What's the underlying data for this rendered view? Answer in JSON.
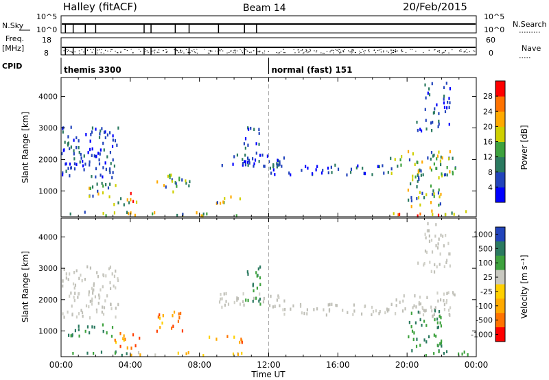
{
  "header": {
    "station": "Halley (fitACF)",
    "beam": "Beam 14",
    "date": "20/Feb/2015"
  },
  "status_strip": {
    "nsky_label": "N.Sky",
    "nsky_tick_top": "10^5",
    "nsky_tick_bottom": "10^0",
    "nsearch_label": "N.Search",
    "nsearch_tick_top": "10^5",
    "nsearch_tick_bottom": "10^0",
    "freq_label": "Freq.",
    "freq_unit": "[MHz]",
    "freq_ticks": [
      "18",
      "8"
    ],
    "nave_label": "Nave",
    "nave_ticks": [
      "60",
      "0"
    ],
    "cpid_label": "CPID",
    "cpid_segments": [
      {
        "start_hour": 0,
        "label": "themis 3300"
      },
      {
        "start_hour": 12,
        "label": "normal (fast) 151"
      }
    ]
  },
  "chart_data": [
    {
      "type": "heatmap",
      "name": "power",
      "ylabel": "Slant Range [km]",
      "yticks": [
        "4000",
        "3000",
        "2000",
        "1000"
      ],
      "ylim": [
        180,
        4600
      ],
      "xlim": [
        0,
        24
      ],
      "colorbar": {
        "label": "Power [dB]",
        "ticks": [
          "28",
          "24",
          "20",
          "16",
          "12",
          "8",
          "4"
        ],
        "range": [
          0,
          32
        ],
        "colors": [
          "#0000ff",
          "#2244bb",
          "#2b7a60",
          "#3ea23e",
          "#cfd000",
          "#ffaa00",
          "#ff7300",
          "#ff0000"
        ]
      },
      "clusters": [
        {
          "t0": 0.0,
          "t1": 3.3,
          "r0": 1450,
          "r1": 3100,
          "level": "low"
        },
        {
          "t0": 0.3,
          "t1": 1.3,
          "r0": 1750,
          "r1": 2250,
          "level": "low"
        },
        {
          "t0": 1.2,
          "t1": 3.2,
          "r0": 800,
          "r1": 1300,
          "level": "mid"
        },
        {
          "t0": 3.0,
          "t1": 4.5,
          "r0": 600,
          "r1": 1000,
          "level": "high"
        },
        {
          "t0": 0.3,
          "t1": 4.0,
          "r0": 250,
          "r1": 380,
          "level": "mid"
        },
        {
          "t0": 4.0,
          "t1": 10.5,
          "r0": 250,
          "r1": 360,
          "level": "mid"
        },
        {
          "t0": 5.5,
          "t1": 7.5,
          "r0": 1000,
          "r1": 1600,
          "level": "mid"
        },
        {
          "t0": 8.5,
          "t1": 10.5,
          "r0": 650,
          "r1": 900,
          "level": "mid"
        },
        {
          "t0": 9.0,
          "t1": 13.0,
          "r0": 1800,
          "r1": 2200,
          "level": "low"
        },
        {
          "t0": 10.5,
          "t1": 11.5,
          "r0": 1900,
          "r1": 3100,
          "level": "low"
        },
        {
          "t0": 12.0,
          "t1": 19.0,
          "r0": 1550,
          "r1": 1900,
          "level": "low"
        },
        {
          "t0": 19.0,
          "t1": 22.8,
          "r0": 1500,
          "r1": 2300,
          "level": "mid"
        },
        {
          "t0": 20.0,
          "t1": 22.0,
          "r0": 550,
          "r1": 1700,
          "level": "mid"
        },
        {
          "t0": 20.5,
          "t1": 22.5,
          "r0": 2900,
          "r1": 3300,
          "level": "low"
        },
        {
          "t0": 21.0,
          "t1": 22.5,
          "r0": 3500,
          "r1": 4500,
          "level": "low"
        },
        {
          "t0": 19.0,
          "t1": 23.5,
          "r0": 250,
          "r1": 420,
          "level": "high"
        }
      ]
    },
    {
      "type": "heatmap",
      "name": "velocity",
      "ylabel": "Slant Range [km]",
      "yticks": [
        "4000",
        "3000",
        "2000",
        "1000"
      ],
      "ylim": [
        180,
        4600
      ],
      "xlim": [
        0,
        24
      ],
      "colorbar": {
        "label": "Velocity [m s⁻¹]",
        "ticks": [
          "1000",
          "500",
          "100",
          "25",
          "-25",
          "-100",
          "-500",
          "-1000"
        ],
        "colors": [
          "#2244bb",
          "#2b7a60",
          "#3ea23e",
          "#c8c8c0",
          "#ffd000",
          "#ffaa00",
          "#ff7300",
          "#ff0000"
        ]
      },
      "clusters": [
        {
          "t0": 0.0,
          "t1": 3.3,
          "r0": 1450,
          "r1": 3100,
          "level": "grey"
        },
        {
          "t0": 0.3,
          "t1": 3.0,
          "r0": 850,
          "r1": 1250,
          "level": "green"
        },
        {
          "t0": 3.0,
          "t1": 4.5,
          "r0": 500,
          "r1": 1000,
          "level": "orange"
        },
        {
          "t0": 0.3,
          "t1": 4.0,
          "r0": 250,
          "r1": 380,
          "level": "green"
        },
        {
          "t0": 4.0,
          "t1": 10.5,
          "r0": 250,
          "r1": 360,
          "level": "yellow"
        },
        {
          "t0": 5.5,
          "t1": 7.0,
          "r0": 1000,
          "r1": 1650,
          "level": "orange"
        },
        {
          "t0": 8.5,
          "t1": 10.5,
          "r0": 650,
          "r1": 900,
          "level": "orange"
        },
        {
          "t0": 9.0,
          "t1": 13.0,
          "r0": 1800,
          "r1": 2250,
          "level": "grey"
        },
        {
          "t0": 10.5,
          "t1": 11.5,
          "r0": 1900,
          "r1": 3100,
          "level": "green"
        },
        {
          "t0": 12.0,
          "t1": 19.0,
          "r0": 1550,
          "r1": 1900,
          "level": "grey"
        },
        {
          "t0": 19.0,
          "t1": 22.8,
          "r0": 1500,
          "r1": 2300,
          "level": "grey"
        },
        {
          "t0": 20.0,
          "t1": 22.0,
          "r0": 550,
          "r1": 1700,
          "level": "green"
        },
        {
          "t0": 20.5,
          "t1": 22.5,
          "r0": 2900,
          "r1": 3300,
          "level": "grey"
        },
        {
          "t0": 21.0,
          "t1": 22.5,
          "r0": 3500,
          "r1": 4500,
          "level": "grey"
        },
        {
          "t0": 19.5,
          "t1": 23.5,
          "r0": 250,
          "r1": 420,
          "level": "green"
        }
      ]
    }
  ],
  "time_axis": {
    "label": "Time UT",
    "ticks": [
      "00:00",
      "04:00",
      "08:00",
      "12:00",
      "16:00",
      "20:00",
      "00:00"
    ]
  }
}
